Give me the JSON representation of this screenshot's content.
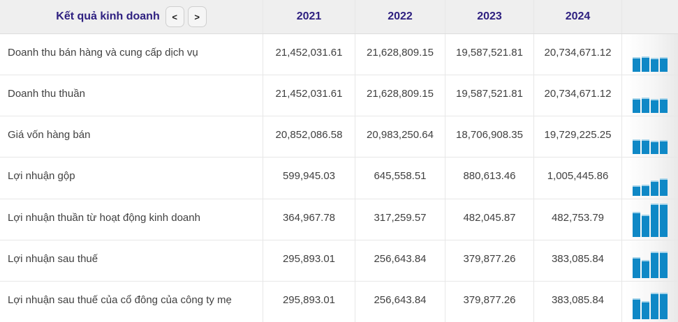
{
  "header": {
    "title": "Kết quả kinh doanh",
    "prev_label": "<",
    "next_label": ">",
    "years": [
      "2021",
      "2022",
      "2023",
      "2024"
    ]
  },
  "rows": [
    {
      "label": "Doanh thu bán hàng và cung cấp dịch vụ",
      "values": [
        "21,452,031.61",
        "21,628,809.15",
        "19,587,521.81",
        "20,734,671.12"
      ],
      "sparkline": [
        21452031.61,
        21628809.15,
        19587521.81,
        20734671.12
      ]
    },
    {
      "label": "Doanh thu thuần",
      "values": [
        "21,452,031.61",
        "21,628,809.15",
        "19,587,521.81",
        "20,734,671.12"
      ],
      "sparkline": [
        21452031.61,
        21628809.15,
        19587521.81,
        20734671.12
      ]
    },
    {
      "label": "Giá vốn hàng bán",
      "values": [
        "20,852,086.58",
        "20,983,250.64",
        "18,706,908.35",
        "19,729,225.25"
      ],
      "sparkline": [
        20852086.58,
        20983250.64,
        18706908.35,
        19729225.25
      ]
    },
    {
      "label": "Lợi nhuận gộp",
      "values": [
        "599,945.03",
        "645,558.51",
        "880,613.46",
        "1,005,445.86"
      ],
      "sparkline": [
        599945.03,
        645558.51,
        880613.46,
        1005445.86
      ]
    },
    {
      "label": "Lợi nhuận thuần từ hoạt động kinh doanh",
      "values": [
        "364,967.78",
        "317,259.57",
        "482,045.87",
        "482,753.79"
      ],
      "sparkline": [
        364967.78,
        317259.57,
        482045.87,
        482753.79
      ]
    },
    {
      "label": "Lợi nhuận sau thuế",
      "values": [
        "295,893.01",
        "256,643.84",
        "379,877.26",
        "383,085.84"
      ],
      "sparkline": [
        295893.01,
        256643.84,
        379877.26,
        383085.84
      ]
    },
    {
      "label": "Lợi nhuận sau thuế của cổ đông của công ty mẹ",
      "values": [
        "295,893.01",
        "256,643.84",
        "379,877.26",
        "383,085.84"
      ],
      "sparkline": [
        295893.01,
        256643.84,
        379877.26,
        383085.84
      ]
    }
  ],
  "colors": {
    "header_bg": "#efefef",
    "accent_purple": "#2e2080",
    "text": "#404040",
    "bar_color": "#0f88c6",
    "bar_cap": "#a6d4ea",
    "row_border": "#e7e7e7",
    "fade_gray": "#e9e9e9"
  }
}
